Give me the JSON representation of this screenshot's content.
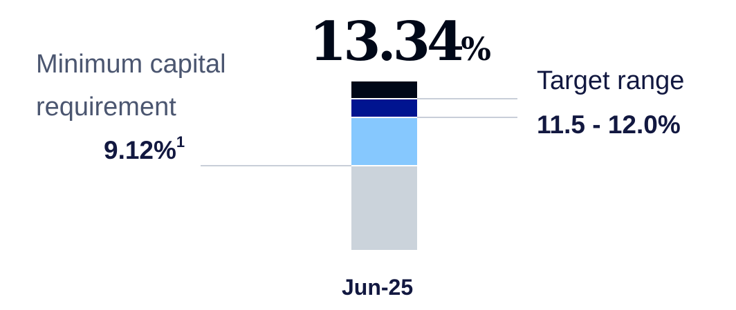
{
  "chart_data": {
    "type": "bar",
    "stacked": true,
    "categories": [
      "Jun-25"
    ],
    "segments": [
      {
        "from": 0,
        "to": 9.12,
        "color": "#cbd3db"
      },
      {
        "from": 9.12,
        "to": 11.5,
        "color": "#86c8fe"
      },
      {
        "from": 11.5,
        "to": 12.0,
        "color": "#001490"
      },
      {
        "from": 12.0,
        "to": 13.34,
        "color": "#000818"
      }
    ],
    "total_label": "13.34",
    "total_unit": "%",
    "annotations": {
      "minimum": {
        "label": "Minimum capital requirement",
        "value": "9.12%",
        "footnote": "1"
      },
      "target": {
        "label": "Target range",
        "value": "11.5 - 12.0%"
      }
    },
    "line_color": "#c8ced8",
    "grid": false
  }
}
